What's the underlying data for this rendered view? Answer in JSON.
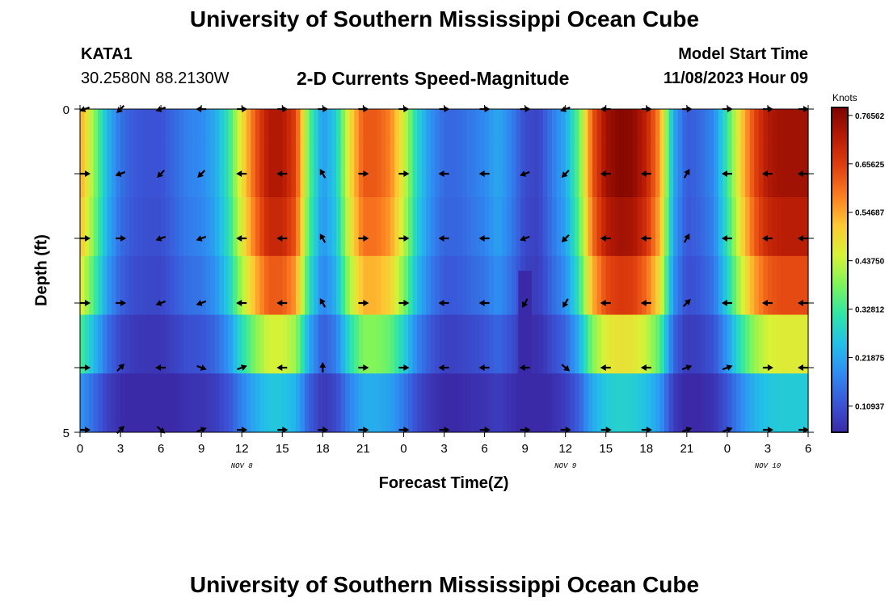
{
  "page": {
    "title_top": "University of Southern Mississippi Ocean Cube",
    "title_bottom": "University of Southern Mississippi Ocean Cube",
    "station_id": "KATA1",
    "station_coords": "30.2580N  88.2130W",
    "plot_subtitle": "2-D Currents Speed-Magnitude",
    "model_start_label": "Model Start Time",
    "model_start_value": "11/08/2023 Hour 09"
  },
  "chart_data": {
    "type": "heatmap",
    "title": "2-D Currents Speed-Magnitude",
    "xlabel": "Forecast Time(Z)",
    "ylabel": "Depth (ft)",
    "x_tick_labels": [
      "0",
      "3",
      "6",
      "9",
      "12",
      "15",
      "18",
      "21",
      "0",
      "3",
      "6",
      "9",
      "12",
      "15",
      "18",
      "21",
      "0",
      "3",
      "6"
    ],
    "x_hours": [
      0,
      3,
      6,
      9,
      12,
      15,
      18,
      21,
      24,
      27,
      30,
      33,
      36,
      39,
      42,
      45,
      48,
      51,
      54
    ],
    "xlim": [
      0,
      54
    ],
    "date_labels": [
      {
        "text": "NOV 8",
        "hour": 12
      },
      {
        "text": "NOV 9",
        "hour": 36
      },
      {
        "text": "NOV 10",
        "hour": 51
      }
    ],
    "y_tick_labels": [
      "0",
      "5"
    ],
    "ylim": [
      0,
      5
    ],
    "depth_levels_ft": [
      0,
      1,
      2,
      3,
      4,
      5
    ],
    "colorbar": {
      "label": "Knots",
      "tick_labels": [
        "0.76562",
        "0.65625",
        "0.54687",
        "0.43750",
        "0.32812",
        "0.21875",
        "0.10937"
      ],
      "tick_values": [
        0.76562,
        0.65625,
        0.54687,
        0.4375,
        0.32812,
        0.21875,
        0.10937
      ],
      "range": [
        0.05,
        0.78
      ],
      "colors": [
        "#3b2aa8",
        "#3a56d8",
        "#2f8cf2",
        "#22c0e8",
        "#2ee6a6",
        "#7ef55a",
        "#d8f236",
        "#fdc934",
        "#fb7e21",
        "#e0400e",
        "#b81b06",
        "#7c0400"
      ]
    },
    "speed_profile_hours": [
      0,
      1,
      2,
      3,
      4,
      5,
      6,
      7,
      8,
      9,
      10,
      11,
      12,
      13,
      14,
      15,
      16,
      17,
      18,
      19,
      20,
      21,
      22,
      23,
      24,
      25,
      26,
      27,
      28,
      29,
      30,
      31,
      32,
      33,
      34,
      35,
      36,
      37,
      38,
      39,
      40,
      41,
      42,
      43,
      44,
      45,
      46,
      47,
      48,
      49,
      50,
      51,
      52,
      53,
      54
    ],
    "speed_profile_knots": [
      0.55,
      0.4,
      0.24,
      0.15,
      0.12,
      0.11,
      0.11,
      0.14,
      0.17,
      0.18,
      0.22,
      0.31,
      0.48,
      0.62,
      0.72,
      0.72,
      0.65,
      0.35,
      0.2,
      0.27,
      0.48,
      0.62,
      0.62,
      0.58,
      0.45,
      0.28,
      0.19,
      0.14,
      0.14,
      0.16,
      0.18,
      0.22,
      0.17,
      0.1,
      0.09,
      0.16,
      0.22,
      0.36,
      0.62,
      0.74,
      0.77,
      0.76,
      0.7,
      0.56,
      0.22,
      0.12,
      0.14,
      0.18,
      0.32,
      0.5,
      0.64,
      0.72,
      0.74,
      0.74,
      0.74
    ],
    "depth_factors": [
      1.0,
      1.0,
      0.96,
      0.86,
      0.62,
      0.36
    ],
    "anomalies": [
      {
        "hour_start": 32.5,
        "hour_end": 33.5,
        "depth_start": 2.5,
        "depth_end": 5.0,
        "speed": 0.05
      }
    ],
    "arrow_hours": [
      0,
      3,
      6,
      9,
      12,
      15,
      18,
      21,
      24,
      27,
      30,
      33,
      36,
      39,
      42,
      45,
      48,
      51,
      54
    ],
    "arrow_depths": [
      0,
      1,
      2,
      3,
      4,
      5
    ],
    "arrow_directions_deg": [
      [
        200,
        225,
        200,
        180,
        0,
        0,
        0,
        0,
        0,
        0,
        0,
        0,
        200,
        180,
        0,
        0,
        0,
        0,
        0
      ],
      [
        0,
        200,
        225,
        225,
        180,
        180,
        120,
        0,
        0,
        180,
        180,
        200,
        225,
        180,
        180,
        60,
        180,
        180,
        180
      ],
      [
        0,
        0,
        200,
        200,
        180,
        180,
        120,
        0,
        0,
        180,
        180,
        200,
        225,
        180,
        180,
        60,
        180,
        180,
        180
      ],
      [
        0,
        0,
        200,
        200,
        180,
        180,
        120,
        0,
        0,
        180,
        180,
        240,
        240,
        180,
        180,
        45,
        180,
        180,
        180
      ],
      [
        0,
        45,
        180,
        340,
        20,
        180,
        90,
        0,
        0,
        180,
        180,
        180,
        320,
        180,
        180,
        20,
        20,
        0,
        180
      ],
      [
        0,
        45,
        320,
        20,
        0,
        0,
        0,
        0,
        0,
        0,
        0,
        0,
        0,
        0,
        0,
        20,
        20,
        0,
        0
      ]
    ]
  }
}
